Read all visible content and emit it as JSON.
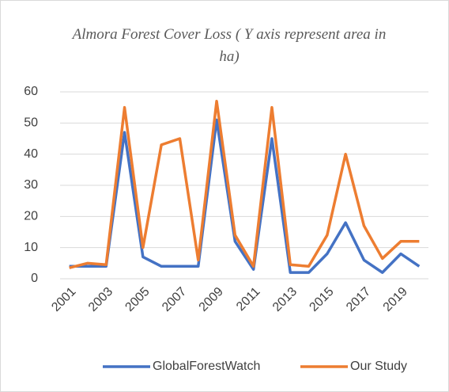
{
  "chart_data": {
    "type": "line",
    "title": "Almora Forest Cover Loss ( Y axis represent area in ha)",
    "categories": [
      "2001",
      null,
      "2003",
      null,
      "2005",
      null,
      "2007",
      null,
      "2009",
      null,
      "2011",
      null,
      "2013",
      null,
      "2015",
      null,
      "2017",
      null,
      "2019",
      null
    ],
    "series": [
      {
        "name": "GlobalForestWatch",
        "color": "#4472c4",
        "values": [
          4,
          4,
          4,
          47,
          7,
          4,
          4,
          4,
          51,
          12,
          3,
          45,
          2,
          2,
          8,
          18,
          6,
          2,
          8,
          4
        ]
      },
      {
        "name": "Our Study",
        "color": "#ed7d31",
        "values": [
          3.5,
          5,
          4.5,
          55,
          10,
          43,
          45,
          6,
          57,
          14,
          4,
          55,
          4.5,
          4,
          14,
          40,
          17,
          6.5,
          12,
          12
        ]
      }
    ],
    "ylim": [
      0,
      60
    ],
    "yticks": [
      0,
      10,
      20,
      30,
      40,
      50,
      60
    ],
    "grid": true,
    "legend": "bottom"
  }
}
